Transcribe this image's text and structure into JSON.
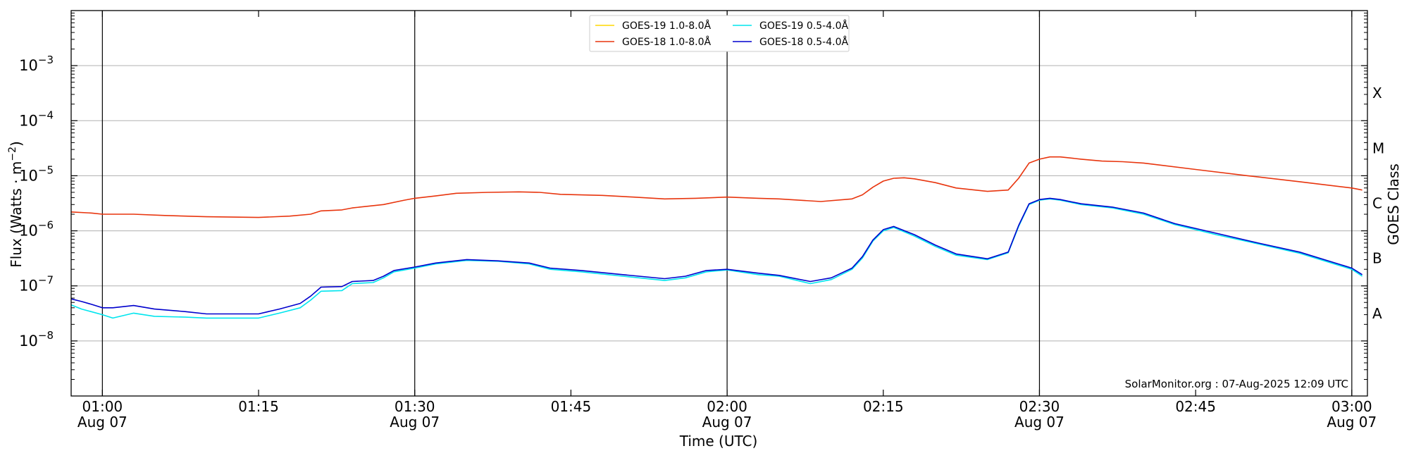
{
  "chart_data": {
    "type": "line",
    "xlabel": "Time (UTC)",
    "ylabel": "Flux (Watts · m",
    "ylabel_sup": "−2",
    "ylabel_close": ")",
    "ylabel_right": "GOES Class",
    "yscale": "log",
    "xlim": [
      "2025-08-07T00:57:00",
      "2025-08-07T03:01:30"
    ],
    "ylim": [
      1e-09,
      0.01
    ],
    "grid": "horizontal",
    "legend_position": "top-center",
    "credit": "SolarMonitor.org : 07-Aug-2025 12:09 UTC",
    "x_ticks": [
      {
        "time": "2025-08-07T01:00:00",
        "label": "01:00",
        "date": "Aug 07",
        "vline": true
      },
      {
        "time": "2025-08-07T01:15:00",
        "label": "01:15",
        "date": "",
        "vline": false
      },
      {
        "time": "2025-08-07T01:30:00",
        "label": "01:30",
        "date": "Aug 07",
        "vline": true
      },
      {
        "time": "2025-08-07T01:45:00",
        "label": "01:45",
        "date": "",
        "vline": false
      },
      {
        "time": "2025-08-07T02:00:00",
        "label": "02:00",
        "date": "Aug 07",
        "vline": true
      },
      {
        "time": "2025-08-07T02:15:00",
        "label": "02:15",
        "date": "",
        "vline": false
      },
      {
        "time": "2025-08-07T02:30:00",
        "label": "02:30",
        "date": "Aug 07",
        "vline": true
      },
      {
        "time": "2025-08-07T02:45:00",
        "label": "02:45",
        "date": "",
        "vline": false
      },
      {
        "time": "2025-08-07T03:00:00",
        "label": "03:00",
        "date": "Aug 07",
        "vline": true
      }
    ],
    "y_ticks": [
      {
        "value": 1e-08,
        "base": "10",
        "exp": "−8"
      },
      {
        "value": 1e-07,
        "base": "10",
        "exp": "−7"
      },
      {
        "value": 1e-06,
        "base": "10",
        "exp": "−6"
      },
      {
        "value": 1e-05,
        "base": "10",
        "exp": "−5"
      },
      {
        "value": 0.0001,
        "base": "10",
        "exp": "−4"
      },
      {
        "value": 0.001,
        "base": "10",
        "exp": "−3"
      }
    ],
    "goes_classes": [
      {
        "label": "A",
        "value": 3.16e-08
      },
      {
        "label": "B",
        "value": 3.16e-07
      },
      {
        "label": "C",
        "value": 3.16e-06
      },
      {
        "label": "M",
        "value": 3.16e-05
      },
      {
        "label": "X",
        "value": 0.000316
      }
    ],
    "series": [
      {
        "name": "GOES-19 1.0-8.0Å",
        "color": "#ffd700",
        "points": []
      },
      {
        "name": "GOES-18 1.0-8.0Å",
        "color": "#e8350e",
        "points": [
          [
            "2025-08-07T00:57:00",
            2.2e-06
          ],
          [
            "2025-08-07T00:59:00",
            2.1e-06
          ],
          [
            "2025-08-07T01:00:00",
            2e-06
          ],
          [
            "2025-08-07T01:03:00",
            2e-06
          ],
          [
            "2025-08-07T01:06:00",
            1.9e-06
          ],
          [
            "2025-08-07T01:10:00",
            1.8e-06
          ],
          [
            "2025-08-07T01:15:00",
            1.75e-06
          ],
          [
            "2025-08-07T01:18:00",
            1.85e-06
          ],
          [
            "2025-08-07T01:20:00",
            2e-06
          ],
          [
            "2025-08-07T01:21:00",
            2.3e-06
          ],
          [
            "2025-08-07T01:23:00",
            2.4e-06
          ],
          [
            "2025-08-07T01:24:00",
            2.6e-06
          ],
          [
            "2025-08-07T01:27:00",
            3e-06
          ],
          [
            "2025-08-07T01:29:00",
            3.6e-06
          ],
          [
            "2025-08-07T01:30:00",
            3.9e-06
          ],
          [
            "2025-08-07T01:32:00",
            4.3e-06
          ],
          [
            "2025-08-07T01:34:00",
            4.8e-06
          ],
          [
            "2025-08-07T01:37:00",
            5e-06
          ],
          [
            "2025-08-07T01:40:00",
            5.1e-06
          ],
          [
            "2025-08-07T01:42:00",
            5e-06
          ],
          [
            "2025-08-07T01:44:00",
            4.6e-06
          ],
          [
            "2025-08-07T01:48:00",
            4.4e-06
          ],
          [
            "2025-08-07T01:51:00",
            4.1e-06
          ],
          [
            "2025-08-07T01:54:00",
            3.8e-06
          ],
          [
            "2025-08-07T01:57:00",
            3.9e-06
          ],
          [
            "2025-08-07T02:00:00",
            4.1e-06
          ],
          [
            "2025-08-07T02:03:00",
            3.9e-06
          ],
          [
            "2025-08-07T02:05:00",
            3.8e-06
          ],
          [
            "2025-08-07T02:09:00",
            3.4e-06
          ],
          [
            "2025-08-07T02:12:00",
            3.8e-06
          ],
          [
            "2025-08-07T02:13:00",
            4.5e-06
          ],
          [
            "2025-08-07T02:14:00",
            6.2e-06
          ],
          [
            "2025-08-07T02:15:00",
            8e-06
          ],
          [
            "2025-08-07T02:16:00",
            9e-06
          ],
          [
            "2025-08-07T02:17:00",
            9.2e-06
          ],
          [
            "2025-08-07T02:18:00",
            8.8e-06
          ],
          [
            "2025-08-07T02:20:00",
            7.5e-06
          ],
          [
            "2025-08-07T02:22:00",
            6e-06
          ],
          [
            "2025-08-07T02:25:00",
            5.2e-06
          ],
          [
            "2025-08-07T02:27:00",
            5.5e-06
          ],
          [
            "2025-08-07T02:28:00",
            9e-06
          ],
          [
            "2025-08-07T02:29:00",
            1.7e-05
          ],
          [
            "2025-08-07T02:30:00",
            2e-05
          ],
          [
            "2025-08-07T02:31:00",
            2.2e-05
          ],
          [
            "2025-08-07T02:32:00",
            2.2e-05
          ],
          [
            "2025-08-07T02:34:00",
            2e-05
          ],
          [
            "2025-08-07T02:36:00",
            1.85e-05
          ],
          [
            "2025-08-07T02:38:00",
            1.8e-05
          ],
          [
            "2025-08-07T02:40:00",
            1.7e-05
          ],
          [
            "2025-08-07T02:45:00",
            1.3e-05
          ],
          [
            "2025-08-07T02:50:00",
            1e-05
          ],
          [
            "2025-08-07T02:55:00",
            7.8e-06
          ],
          [
            "2025-08-07T03:00:00",
            6e-06
          ],
          [
            "2025-08-07T03:01:00",
            5.5e-06
          ]
        ]
      },
      {
        "name": "GOES-19 0.5-4.0Å",
        "color": "#00e5ee",
        "points": [
          [
            "2025-08-07T00:57:00",
            4.5e-08
          ],
          [
            "2025-08-07T00:58:00",
            3.8e-08
          ],
          [
            "2025-08-07T01:00:00",
            3e-08
          ],
          [
            "2025-08-07T01:01:00",
            2.6e-08
          ],
          [
            "2025-08-07T01:03:00",
            3.2e-08
          ],
          [
            "2025-08-07T01:05:00",
            2.8e-08
          ],
          [
            "2025-08-07T01:08:00",
            2.7e-08
          ],
          [
            "2025-08-07T01:10:00",
            2.6e-08
          ],
          [
            "2025-08-07T01:15:00",
            2.6e-08
          ],
          [
            "2025-08-07T01:17:00",
            3.2e-08
          ],
          [
            "2025-08-07T01:19:00",
            4e-08
          ],
          [
            "2025-08-07T01:20:00",
            5.5e-08
          ],
          [
            "2025-08-07T01:21:00",
            8e-08
          ],
          [
            "2025-08-07T01:23:00",
            8.2e-08
          ],
          [
            "2025-08-07T01:24:00",
            1.1e-07
          ],
          [
            "2025-08-07T01:26:00",
            1.15e-07
          ],
          [
            "2025-08-07T01:27:00",
            1.4e-07
          ],
          [
            "2025-08-07T01:28:00",
            1.8e-07
          ],
          [
            "2025-08-07T01:30:00",
            2.1e-07
          ],
          [
            "2025-08-07T01:32:00",
            2.5e-07
          ],
          [
            "2025-08-07T01:35:00",
            2.9e-07
          ],
          [
            "2025-08-07T01:38:00",
            2.8e-07
          ],
          [
            "2025-08-07T01:41:00",
            2.5e-07
          ],
          [
            "2025-08-07T01:43:00",
            2e-07
          ],
          [
            "2025-08-07T01:46:00",
            1.8e-07
          ],
          [
            "2025-08-07T01:50:00",
            1.5e-07
          ],
          [
            "2025-08-07T01:54:00",
            1.25e-07
          ],
          [
            "2025-08-07T01:56:00",
            1.4e-07
          ],
          [
            "2025-08-07T01:58:00",
            1.8e-07
          ],
          [
            "2025-08-07T02:00:00",
            1.95e-07
          ],
          [
            "2025-08-07T02:03:00",
            1.6e-07
          ],
          [
            "2025-08-07T02:05:00",
            1.5e-07
          ],
          [
            "2025-08-07T02:08:00",
            1.1e-07
          ],
          [
            "2025-08-07T02:10:00",
            1.3e-07
          ],
          [
            "2025-08-07T02:12:00",
            2e-07
          ],
          [
            "2025-08-07T02:13:00",
            3.2e-07
          ],
          [
            "2025-08-07T02:14:00",
            6.5e-07
          ],
          [
            "2025-08-07T02:15:00",
            1e-06
          ],
          [
            "2025-08-07T02:16:00",
            1.15e-06
          ],
          [
            "2025-08-07T02:18:00",
            8e-07
          ],
          [
            "2025-08-07T02:20:00",
            5.2e-07
          ],
          [
            "2025-08-07T02:22:00",
            3.6e-07
          ],
          [
            "2025-08-07T02:25:00",
            3e-07
          ],
          [
            "2025-08-07T02:27:00",
            4e-07
          ],
          [
            "2025-08-07T02:28:00",
            1.2e-06
          ],
          [
            "2025-08-07T02:29:00",
            3e-06
          ],
          [
            "2025-08-07T02:30:00",
            3.6e-06
          ],
          [
            "2025-08-07T02:31:00",
            3.8e-06
          ],
          [
            "2025-08-07T02:32:00",
            3.6e-06
          ],
          [
            "2025-08-07T02:34:00",
            3e-06
          ],
          [
            "2025-08-07T02:37:00",
            2.6e-06
          ],
          [
            "2025-08-07T02:40:00",
            2e-06
          ],
          [
            "2025-08-07T02:43:00",
            1.3e-06
          ],
          [
            "2025-08-07T02:47:00",
            8.5e-07
          ],
          [
            "2025-08-07T02:51:00",
            5.8e-07
          ],
          [
            "2025-08-07T02:55:00",
            3.9e-07
          ],
          [
            "2025-08-07T03:00:00",
            2e-07
          ],
          [
            "2025-08-07T03:01:00",
            1.5e-07
          ]
        ]
      },
      {
        "name": "GOES-18 0.5-4.0Å",
        "color": "#0000cd",
        "points": [
          [
            "2025-08-07T00:57:00",
            5.8e-08
          ],
          [
            "2025-08-07T00:58:00",
            5.2e-08
          ],
          [
            "2025-08-07T00:59:00",
            4.6e-08
          ],
          [
            "2025-08-07T01:00:00",
            4e-08
          ],
          [
            "2025-08-07T01:01:00",
            4e-08
          ],
          [
            "2025-08-07T01:03:00",
            4.4e-08
          ],
          [
            "2025-08-07T01:05:00",
            3.8e-08
          ],
          [
            "2025-08-07T01:08:00",
            3.4e-08
          ],
          [
            "2025-08-07T01:10:00",
            3.1e-08
          ],
          [
            "2025-08-07T01:15:00",
            3.1e-08
          ],
          [
            "2025-08-07T01:17:00",
            3.8e-08
          ],
          [
            "2025-08-07T01:19:00",
            4.8e-08
          ],
          [
            "2025-08-07T01:20:00",
            6.5e-08
          ],
          [
            "2025-08-07T01:21:00",
            9.5e-08
          ],
          [
            "2025-08-07T01:23:00",
            9.7e-08
          ],
          [
            "2025-08-07T01:24:00",
            1.2e-07
          ],
          [
            "2025-08-07T01:26:00",
            1.25e-07
          ],
          [
            "2025-08-07T01:27:00",
            1.5e-07
          ],
          [
            "2025-08-07T01:28:00",
            1.9e-07
          ],
          [
            "2025-08-07T01:30:00",
            2.2e-07
          ],
          [
            "2025-08-07T01:32:00",
            2.6e-07
          ],
          [
            "2025-08-07T01:35:00",
            3e-07
          ],
          [
            "2025-08-07T01:38:00",
            2.85e-07
          ],
          [
            "2025-08-07T01:41:00",
            2.6e-07
          ],
          [
            "2025-08-07T01:43:00",
            2.1e-07
          ],
          [
            "2025-08-07T01:46:00",
            1.9e-07
          ],
          [
            "2025-08-07T01:50:00",
            1.6e-07
          ],
          [
            "2025-08-07T01:54:00",
            1.35e-07
          ],
          [
            "2025-08-07T01:56:00",
            1.5e-07
          ],
          [
            "2025-08-07T01:58:00",
            1.9e-07
          ],
          [
            "2025-08-07T02:00:00",
            2e-07
          ],
          [
            "2025-08-07T02:03:00",
            1.7e-07
          ],
          [
            "2025-08-07T02:05:00",
            1.55e-07
          ],
          [
            "2025-08-07T02:08:00",
            1.2e-07
          ],
          [
            "2025-08-07T02:10:00",
            1.4e-07
          ],
          [
            "2025-08-07T02:12:00",
            2.1e-07
          ],
          [
            "2025-08-07T02:13:00",
            3.4e-07
          ],
          [
            "2025-08-07T02:14:00",
            6.8e-07
          ],
          [
            "2025-08-07T02:15:00",
            1.05e-06
          ],
          [
            "2025-08-07T02:16:00",
            1.2e-06
          ],
          [
            "2025-08-07T02:18:00",
            8.5e-07
          ],
          [
            "2025-08-07T02:20:00",
            5.5e-07
          ],
          [
            "2025-08-07T02:22:00",
            3.8e-07
          ],
          [
            "2025-08-07T02:25:00",
            3.1e-07
          ],
          [
            "2025-08-07T02:27:00",
            4.1e-07
          ],
          [
            "2025-08-07T02:28:00",
            1.25e-06
          ],
          [
            "2025-08-07T02:29:00",
            3.1e-06
          ],
          [
            "2025-08-07T02:30:00",
            3.7e-06
          ],
          [
            "2025-08-07T02:31:00",
            3.9e-06
          ],
          [
            "2025-08-07T02:32:00",
            3.7e-06
          ],
          [
            "2025-08-07T02:34:00",
            3.1e-06
          ],
          [
            "2025-08-07T02:37:00",
            2.7e-06
          ],
          [
            "2025-08-07T02:40:00",
            2.1e-06
          ],
          [
            "2025-08-07T02:43:00",
            1.35e-06
          ],
          [
            "2025-08-07T02:47:00",
            9e-07
          ],
          [
            "2025-08-07T02:51:00",
            6e-07
          ],
          [
            "2025-08-07T02:55:00",
            4.1e-07
          ],
          [
            "2025-08-07T03:00:00",
            2.1e-07
          ],
          [
            "2025-08-07T03:01:00",
            1.6e-07
          ]
        ]
      }
    ]
  }
}
